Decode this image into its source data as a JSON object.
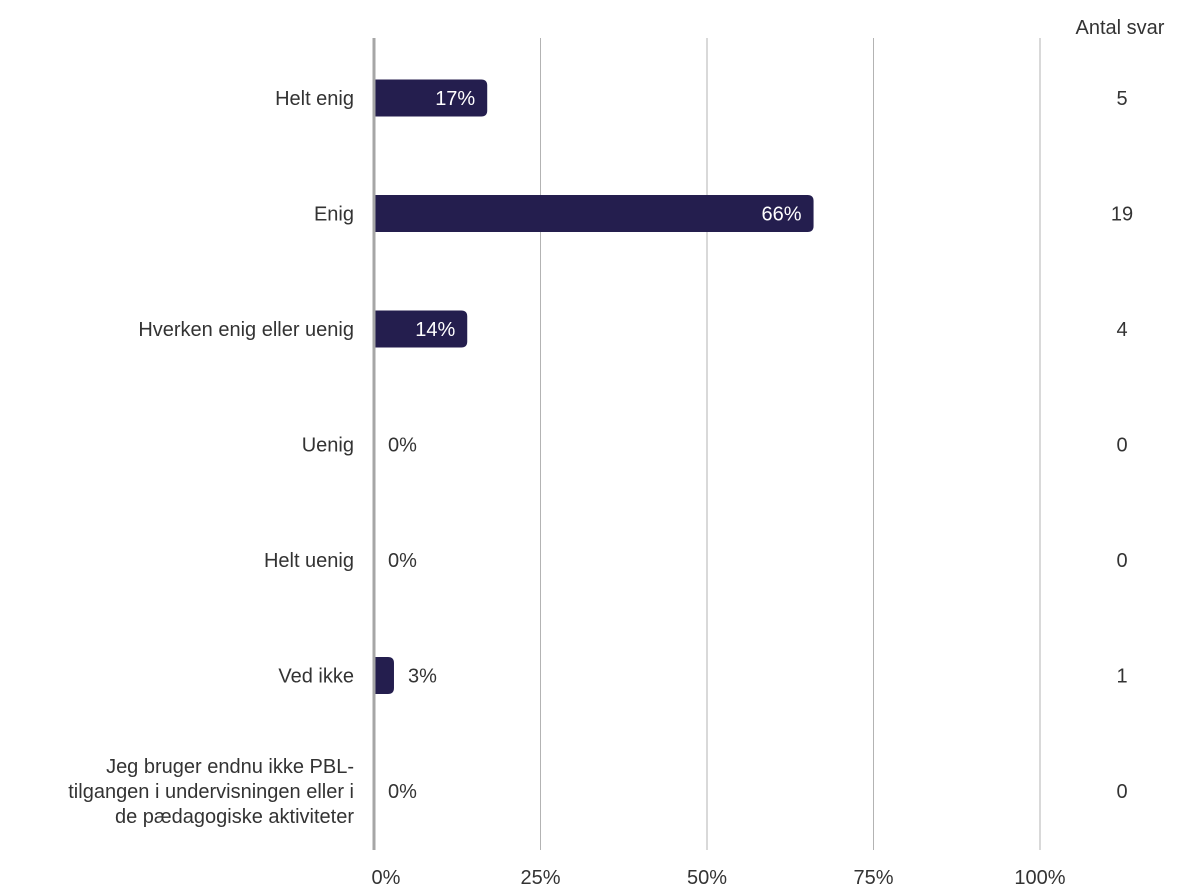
{
  "chart_data": {
    "type": "bar",
    "orientation": "horizontal",
    "categories": [
      "Helt enig",
      "Enig",
      "Hverken enig eller uenig",
      "Uenig",
      "Helt uenig",
      "Ved ikke",
      "Jeg bruger endnu ikke PBL-tilgangen i undervisningen eller i de pædagogiske aktiviteter"
    ],
    "category_lines": [
      [
        "Helt enig"
      ],
      [
        "Enig"
      ],
      [
        "Hverken enig eller uenig"
      ],
      [
        "Uenig"
      ],
      [
        "Helt uenig"
      ],
      [
        "Ved ikke"
      ],
      [
        "Jeg bruger endnu ikke PBL-",
        "tilgangen i undervisningen eller i",
        "de pædagogiske aktiviteter"
      ]
    ],
    "values": [
      17,
      66,
      14,
      0,
      0,
      3,
      0
    ],
    "value_labels": [
      "17%",
      "66%",
      "14%",
      "0%",
      "0%",
      "3%",
      "0%"
    ],
    "counts": [
      5,
      19,
      4,
      0,
      0,
      1,
      0
    ],
    "counts_header": "Antal svar",
    "xlim": [
      0,
      100
    ],
    "xticks": [
      0,
      25,
      50,
      75,
      100
    ],
    "xtick_labels": [
      "0%",
      "25%",
      "50%",
      "75%",
      "100%"
    ],
    "grid": true,
    "bar_color": "#241e4e",
    "grid_color": "#b3b3b3",
    "axis_color": "#a6a6a6",
    "text_color": "#333333"
  }
}
